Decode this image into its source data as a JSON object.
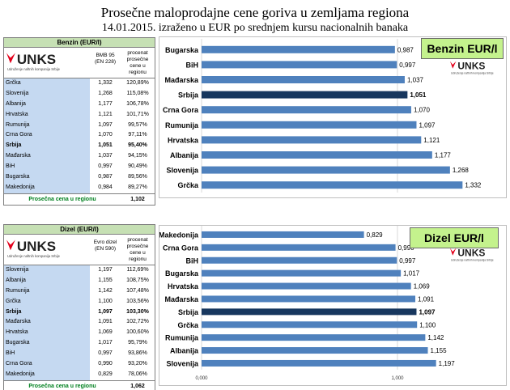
{
  "title": {
    "line1": "Prosečne maloprodajne cene goriva u zemljama regiona",
    "line2": "14.01.2015. izraženo u EUR po srednjem kursu nacionalnih banaka"
  },
  "logo": {
    "text": "UNKS",
    "subtitle": "Udruženje naftnih kompanija Srbije"
  },
  "colors": {
    "bar": "#4f81bd",
    "bar_highlight": "#17375e",
    "table_head": "#c6e0b4",
    "country_cell": "#c5d9f1",
    "badge": "#c4f28d"
  },
  "benzin_table": {
    "header": "Benzin (EUR/l)",
    "col1": "BMB 95 (EN 228)",
    "col2": "procenat prosečne cene u regionu",
    "rows": [
      {
        "country": "Grčka",
        "price": "1,332",
        "pct": "120,89%"
      },
      {
        "country": "Slovenija",
        "price": "1,268",
        "pct": "115,08%"
      },
      {
        "country": "Albanija",
        "price": "1,177",
        "pct": "106,78%"
      },
      {
        "country": "Hrvatska",
        "price": "1,121",
        "pct": "101,71%"
      },
      {
        "country": "Rumunija",
        "price": "1,097",
        "pct": "99,57%"
      },
      {
        "country": "Crna Gora",
        "price": "1,070",
        "pct": "97,11%"
      },
      {
        "country": "Srbija",
        "price": "1,051",
        "pct": "95,40%"
      },
      {
        "country": "Mađarska",
        "price": "1,037",
        "pct": "94,15%"
      },
      {
        "country": "BiH",
        "price": "0,997",
        "pct": "90,49%"
      },
      {
        "country": "Bugarska",
        "price": "0,987",
        "pct": "89,56%"
      },
      {
        "country": "Makedonija",
        "price": "0,984",
        "pct": "89,27%"
      }
    ],
    "footer_label": "Prosečna cena u regionu",
    "footer_value": "1,102"
  },
  "dizel_table": {
    "header": "Dizel (EUR/l)",
    "col1": "Evro dizel (EN 590)",
    "col2": "procenat prosečne cene u regionu",
    "rows": [
      {
        "country": "Slovenija",
        "price": "1,197",
        "pct": "112,69%"
      },
      {
        "country": "Albanija",
        "price": "1,155",
        "pct": "108,75%"
      },
      {
        "country": "Rumunija",
        "price": "1,142",
        "pct": "107,48%"
      },
      {
        "country": "Grčka",
        "price": "1,100",
        "pct": "103,56%"
      },
      {
        "country": "Srbija",
        "price": "1,097",
        "pct": "103,30%"
      },
      {
        "country": "Mađarska",
        "price": "1,091",
        "pct": "102,72%"
      },
      {
        "country": "Hrvatska",
        "price": "1,069",
        "pct": "100,60%"
      },
      {
        "country": "Bugarska",
        "price": "1,017",
        "pct": "95,79%"
      },
      {
        "country": "BiH",
        "price": "0,997",
        "pct": "93,86%"
      },
      {
        "country": "Crna Gora",
        "price": "0,990",
        "pct": "93,20%"
      },
      {
        "country": "Makedonija",
        "price": "0,829",
        "pct": "78,06%"
      }
    ],
    "footer_label": "Prosečna cena u regionu",
    "footer_value": "1,062"
  },
  "chart_data": [
    {
      "type": "bar",
      "title": "Benzin EUR/l",
      "orientation": "horizontal",
      "categories": [
        "Bugarska",
        "BiH",
        "Mađarska",
        "Srbija",
        "Crna Gora",
        "Rumunija",
        "Hrvatska",
        "Albanija",
        "Slovenija",
        "Grčka"
      ],
      "values": [
        0.987,
        0.997,
        1.037,
        1.051,
        1.07,
        1.097,
        1.121,
        1.177,
        1.268,
        1.332
      ],
      "value_labels": [
        "0,987",
        "0,997",
        "1,037",
        "1,051",
        "1,070",
        "1,097",
        "1,121",
        "1,177",
        "1,268",
        "1,332"
      ],
      "highlight": "Srbija",
      "xlim": [
        0,
        1.8
      ],
      "xticks": [
        0,
        1
      ],
      "xtick_labels": [
        "0,000",
        "1,000"
      ]
    },
    {
      "type": "bar",
      "title": "Dizel  EUR/l",
      "orientation": "horizontal",
      "categories": [
        "Makedonija",
        "Crna Gora",
        "BiH",
        "Bugarska",
        "Hrvatska",
        "Mađarska",
        "Srbija",
        "Grčka",
        "Rumunija",
        "Albanija",
        "Slovenija"
      ],
      "values": [
        0.829,
        0.99,
        0.997,
        1.017,
        1.069,
        1.091,
        1.097,
        1.1,
        1.142,
        1.155,
        1.197
      ],
      "value_labels": [
        "0,829",
        "0,990",
        "0,997",
        "1,017",
        "1,069",
        "1,091",
        "1,097",
        "1,100",
        "1,142",
        "1,155",
        "1,197"
      ],
      "highlight": "Srbija",
      "xlim": [
        0,
        1.8
      ],
      "xticks": [
        0,
        1
      ],
      "xtick_labels": [
        "0,000",
        "1,000"
      ]
    }
  ]
}
